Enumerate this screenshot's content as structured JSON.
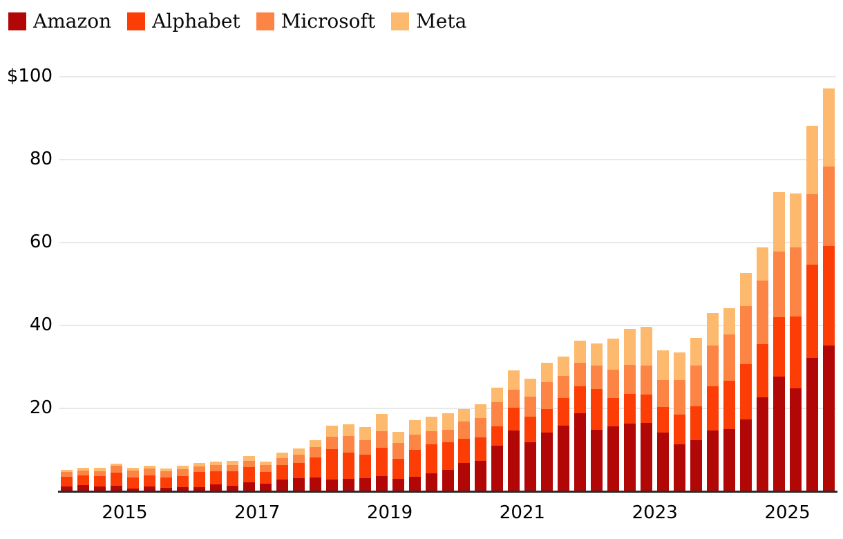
{
  "page": {
    "background": "#ffffff"
  },
  "chart_data": {
    "type": "bar",
    "stacked": true,
    "title": "",
    "xlabel": "",
    "ylabel": "",
    "ylim": [
      0,
      100
    ],
    "grid": true,
    "legend_position": "top-left",
    "y_axis_ticks": [
      {
        "value": 20,
        "label": "20"
      },
      {
        "value": 40,
        "label": "40"
      },
      {
        "value": 60,
        "label": "60"
      },
      {
        "value": 80,
        "label": "80"
      },
      {
        "value": 100,
        "label": "$100"
      }
    ],
    "x_axis_ticks": [
      {
        "label": "2015",
        "category_index": 4
      },
      {
        "label": "2017",
        "category_index": 12
      },
      {
        "label": "2019",
        "category_index": 20
      },
      {
        "label": "2021",
        "category_index": 28
      },
      {
        "label": "2023",
        "category_index": 36
      },
      {
        "label": "2025",
        "category_index": 44
      }
    ],
    "categories": [
      "2014 Q1",
      "2014 Q2",
      "2014 Q3",
      "2014 Q4",
      "2015 Q1",
      "2015 Q2",
      "2015 Q3",
      "2015 Q4",
      "2016 Q1",
      "2016 Q2",
      "2016 Q3",
      "2016 Q4",
      "2017 Q1",
      "2017 Q2",
      "2017 Q3",
      "2017 Q4",
      "2018 Q1",
      "2018 Q2",
      "2018 Q3",
      "2018 Q4",
      "2019 Q1",
      "2019 Q2",
      "2019 Q3",
      "2019 Q4",
      "2020 Q1",
      "2020 Q2",
      "2020 Q3",
      "2020 Q4",
      "2021 Q1",
      "2021 Q2",
      "2021 Q3",
      "2021 Q4",
      "2022 Q1",
      "2022 Q2",
      "2022 Q3",
      "2022 Q4",
      "2023 Q1",
      "2023 Q2",
      "2023 Q3",
      "2023 Q4",
      "2024 Q1",
      "2024 Q2",
      "2024 Q3",
      "2024 Q4",
      "2025 Q1",
      "2025 Q2",
      "2025 Q3"
    ],
    "series": [
      {
        "name": "Amazon",
        "color": "#b20707",
        "values": [
          1.1,
          1.5,
          1.2,
          1.4,
          0.7,
          1.2,
          0.9,
          1.0,
          1.0,
          1.6,
          1.4,
          2.1,
          1.9,
          2.8,
          3.1,
          3.4,
          2.9,
          3.0,
          3.2,
          3.6,
          3.0,
          3.5,
          4.4,
          5.1,
          6.8,
          7.4,
          11.0,
          14.7,
          11.9,
          14.2,
          15.8,
          18.9,
          14.9,
          15.6,
          16.3,
          16.5,
          14.2,
          11.3,
          12.3,
          14.6,
          15.0,
          17.4,
          22.6,
          27.7,
          24.8,
          32.2,
          35.2
        ]
      },
      {
        "name": "Alphabet",
        "color": "#fc3d05",
        "values": [
          2.4,
          2.3,
          2.4,
          3.1,
          2.7,
          2.7,
          2.4,
          2.7,
          3.6,
          3.2,
          3.4,
          3.8,
          2.8,
          3.5,
          3.7,
          4.8,
          7.2,
          6.3,
          5.7,
          6.9,
          4.8,
          6.5,
          6.9,
          6.7,
          5.8,
          5.6,
          4.6,
          5.4,
          6.1,
          5.6,
          6.7,
          6.4,
          9.8,
          6.9,
          7.2,
          6.9,
          6.1,
          7.2,
          8.2,
          10.8,
          11.7,
          13.3,
          12.9,
          14.3,
          17.4,
          22.4,
          23.9
        ]
      },
      {
        "name": "Microsoft",
        "color": "#fc8444",
        "values": [
          1.1,
          1.2,
          1.3,
          1.6,
          1.6,
          1.6,
          1.5,
          1.6,
          1.4,
          1.6,
          1.6,
          1.5,
          1.6,
          1.7,
          2.0,
          2.4,
          3.1,
          4.1,
          3.5,
          4.0,
          3.8,
          3.6,
          3.2,
          3.1,
          4.2,
          4.6,
          5.9,
          4.4,
          4.9,
          6.6,
          5.4,
          5.7,
          5.6,
          6.9,
          7.0,
          7.0,
          6.6,
          8.4,
          9.8,
          9.8,
          11.2,
          13.9,
          15.3,
          15.8,
          16.7,
          17.0,
          19.2
        ]
      },
      {
        "name": "Meta",
        "color": "#fdba6e",
        "values": [
          0.5,
          0.7,
          0.7,
          0.6,
          0.6,
          0.7,
          0.7,
          0.8,
          0.8,
          0.8,
          0.9,
          1.1,
          0.9,
          1.3,
          1.6,
          1.8,
          2.7,
          2.7,
          3.1,
          4.1,
          2.7,
          3.6,
          3.5,
          3.9,
          3.1,
          3.4,
          3.5,
          4.6,
          4.3,
          4.6,
          4.6,
          5.4,
          5.3,
          7.4,
          8.7,
          9.2,
          7.1,
          6.6,
          6.7,
          7.8,
          6.2,
          8.1,
          8.1,
          14.4,
          12.9,
          16.6,
          18.8
        ]
      }
    ]
  }
}
